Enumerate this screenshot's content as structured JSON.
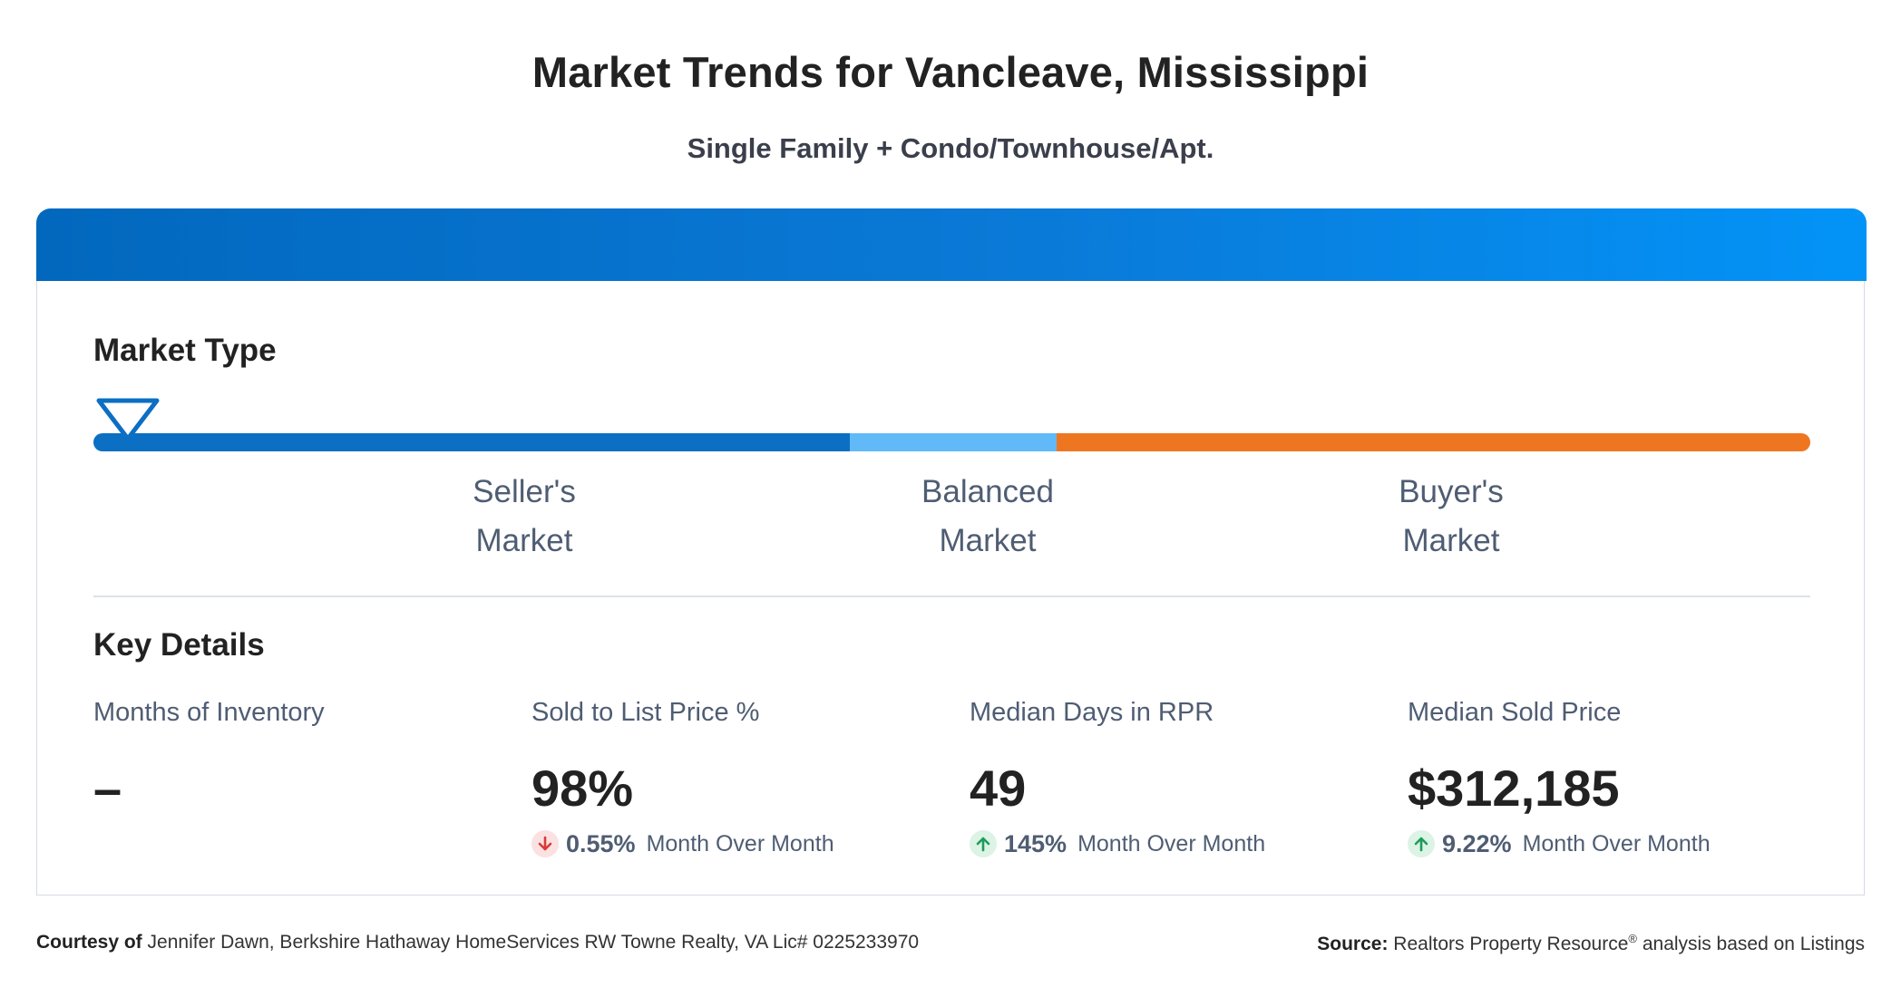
{
  "page": {
    "title": "Market Trends for Vancleave, Mississippi",
    "subtitle": "Single Family + Condo/Townhouse/Apt."
  },
  "market_type": {
    "heading": "Market Type",
    "marker_position": 0.02,
    "segments": [
      {
        "name": "seller",
        "line1": "Seller's",
        "line2": "Market",
        "color": "#0b6fc3"
      },
      {
        "name": "balanced",
        "line1": "Balanced",
        "line2": "Market",
        "color": "#62b9f8"
      },
      {
        "name": "buyer",
        "line1": "Buyer's",
        "line2": "Market",
        "color": "#ef7621"
      }
    ]
  },
  "key_details": {
    "heading": "Key Details",
    "stats": [
      {
        "label": "Months of Inventory",
        "value": "–",
        "change": null
      },
      {
        "label": "Sold to List Price %",
        "value": "98%",
        "change": {
          "direction": "down",
          "pct": "0.55%",
          "text": "Month Over Month"
        }
      },
      {
        "label": "Median Days in RPR",
        "value": "49",
        "change": {
          "direction": "up",
          "pct": "145%",
          "text": "Month Over Month"
        }
      },
      {
        "label": "Median Sold Price",
        "value": "$312,185",
        "change": {
          "direction": "up",
          "pct": "9.22%",
          "text": "Month Over Month"
        }
      }
    ]
  },
  "colors": {
    "header_gradient_start": "#0268be",
    "header_gradient_end": "#0393f7",
    "down": "#d93a3a",
    "up": "#1e9c5a"
  },
  "footer": {
    "courtesy_label": "Courtesy of",
    "courtesy_text": "Jennifer Dawn, Berkshire Hathaway HomeServices RW Towne Realty, VA Lic# 0225233970",
    "source_label": "Source:",
    "source_text": "Realtors Property Resource",
    "source_mark": "®",
    "source_suffix": "analysis based on Listings"
  }
}
